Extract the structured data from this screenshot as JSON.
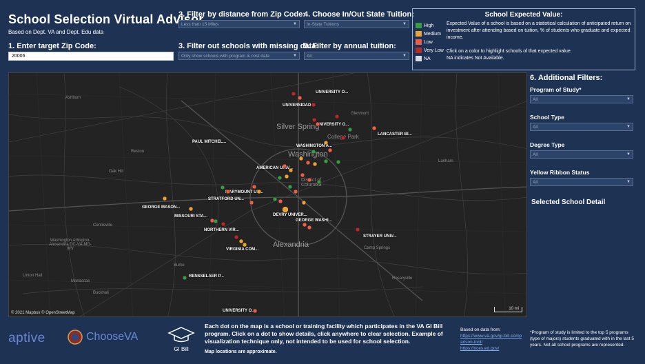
{
  "header": {
    "title": "School Selection Virtual Advisor",
    "subtitle": "Based on Dept. VA and Dept. Edu data"
  },
  "filters": {
    "zip_label": "1. Enter target Zip Code:",
    "zip_value": "20006",
    "distance_label": "2. Filter by distance from Zip Code:",
    "distance_value": "Less than 15 Miles",
    "missing_label": "3. Filter out schools with missing data:",
    "missing_value": "Only show schools with program & cost data",
    "tuition_label": "4. Choose In/Out State Tuition:",
    "tuition_value": "In-State Tuitions",
    "annual_label": "5. Filter by annual tuition:",
    "annual_value": "All"
  },
  "legend": {
    "title": "School Expected Value:",
    "items": [
      {
        "label": "High",
        "color": "#3a9a44"
      },
      {
        "label": "Medium",
        "color": "#e8a23a"
      },
      {
        "label": "Low",
        "color": "#e8604a"
      },
      {
        "label": "Very Low",
        "color": "#b52a2a"
      },
      {
        "label": "NA",
        "color": "#d8dce4"
      }
    ],
    "description": "Expected Value of a school is based on a statistical calculation of anticipated return on investment after attending based on tuition, % of students who graduate and expected income.",
    "click_note": "Click on a color to highlight schools of that expected value.",
    "na_note": "NA indicates Not Available."
  },
  "additional": {
    "title": "6. Additional Filters:",
    "program_label": "Program of Study*",
    "program_value": "All",
    "school_type_label": "School Type",
    "school_type_value": "All",
    "degree_label": "Degree Type",
    "degree_value": "All",
    "ribbon_label": "Yellow Ribbon Status",
    "ribbon_value": "All",
    "selected_detail": "Selected School Detail"
  },
  "map": {
    "attribution": "© 2021 Mapbox  © OpenStreetMap",
    "scale": "10 mi",
    "big_labels": [
      "Silver Spring",
      "Washington",
      "Alexandria",
      "College Park",
      "District of Columbia"
    ],
    "places": [
      "Ashburn",
      "Reston",
      "Oak Hill",
      "Centreville",
      "Washington Arlington-Alexandria DC-VA-MD-WV",
      "Linton Hall",
      "Manassas",
      "Buckhall",
      "Burke",
      "Glenmont",
      "Lanham",
      "Camp Springs",
      "Rosaryville"
    ],
    "schools": [
      "UNIVERSITY O...",
      "UNIVERSIDAD ...",
      "LANCASTER BI...",
      "UNIVERSITY O...",
      "WASHINGTON A...",
      "PAUL MITCHEL...",
      "AMERICAN UNIV...",
      "MARYMOUNT UN...",
      "STRATFORD UN...",
      "GEORGE MASON...",
      "MISSOURI STA...",
      "NORTHERN VIR...",
      "DEVRY UNIVER...",
      "GEORGE WASHI...",
      "STRAYER UNIV...",
      "VIRGINIA COM...",
      "RENSSELAER P...",
      "UNIVERSITY O..."
    ]
  },
  "footer": {
    "logo_aptive": "aptive",
    "logo_choosevA": "ChooseVA",
    "logo_gibill": "GI Bill",
    "description": "Each dot on the map is a school or training facility which participates in the VA GI Bill program. Click on a dot to show details, click anywhere to clear selection. Example of visualization technique only, not intended to be used for school selection.",
    "approx": "Map locations are approximate.",
    "based_on": "Based on data from:",
    "link1": "https://www.va.gov/gi-bill-comparison-tool/",
    "link2": "https://nces.ed.gov/",
    "program_note": "*Program of study is limited to the top 5 programs (type of majors) students graduated with in the last 5 years. Not all school programs are represented."
  }
}
